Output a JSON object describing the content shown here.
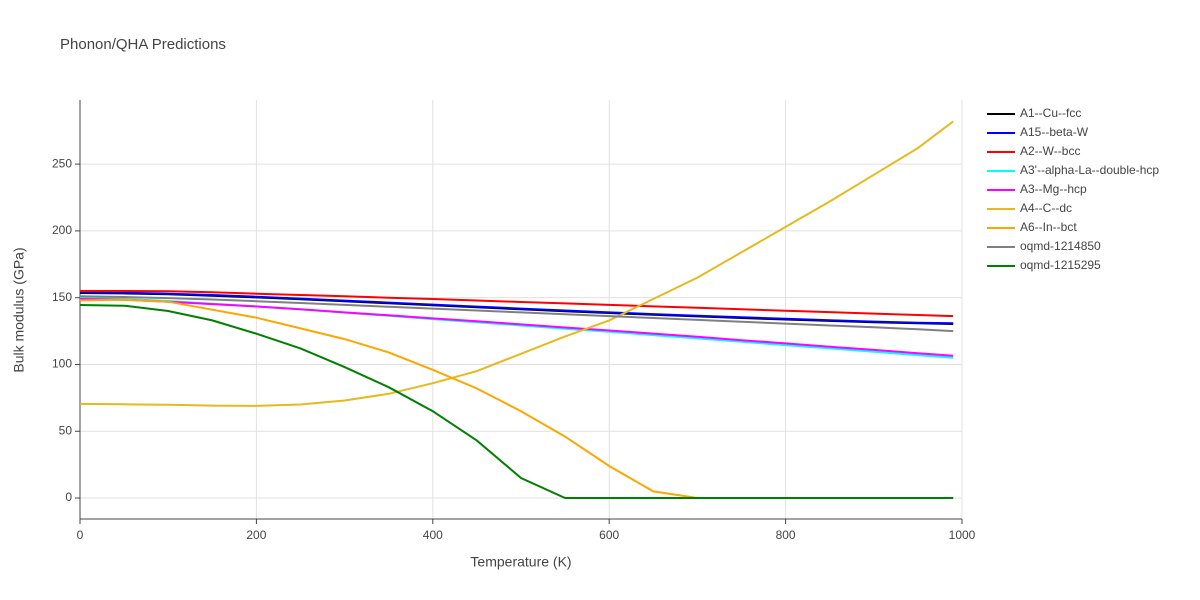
{
  "chart_data": {
    "type": "line",
    "title": "Phonon/QHA Predictions",
    "x_label": "Temperature (K)",
    "y_label": "Bulk modulus (GPa)",
    "x": [
      0,
      50,
      100,
      150,
      200,
      250,
      300,
      350,
      400,
      450,
      500,
      550,
      600,
      650,
      700,
      750,
      800,
      850,
      900,
      950,
      990
    ],
    "xlim": [
      0,
      1000
    ],
    "ylim": [
      -15.7,
      298
    ],
    "xticks": [
      0,
      200,
      400,
      600,
      800,
      1000
    ],
    "yticks": [
      0,
      50,
      100,
      150,
      200,
      250
    ],
    "grid": true,
    "legend": "right",
    "series": [
      {
        "name": "A1--Cu--fcc",
        "color": "#000000",
        "values": [
          153.5,
          153.2,
          152.5,
          151.5,
          150.2,
          148.8,
          147.3,
          145.8,
          144.3,
          142.8,
          141.3,
          139.9,
          138.5,
          137.2,
          136,
          134.8,
          133.7,
          132.6,
          131.6,
          130.8,
          130.3
        ]
      },
      {
        "name": "A15--beta-W",
        "color": "#0000ff",
        "values": [
          154,
          153.7,
          153,
          152,
          150.7,
          149.3,
          147.8,
          146.3,
          144.8,
          143.3,
          141.8,
          140.4,
          139,
          137.7,
          136.5,
          135.3,
          134.2,
          133.1,
          132.1,
          131.3,
          130.8
        ]
      },
      {
        "name": "A2--W--bcc",
        "color": "#ff0000",
        "values": [
          155,
          155,
          154.8,
          154,
          153,
          152,
          151,
          150,
          149,
          147.9,
          146.8,
          145.7,
          144.6,
          143.5,
          142.4,
          141.3,
          140.2,
          139.2,
          138.1,
          137,
          136.2
        ]
      },
      {
        "name": "A3'--alpha-La--double-hcp",
        "color": "#00ffff",
        "values": [
          150,
          149,
          147.5,
          145.5,
          143.5,
          141.2,
          138.8,
          136.4,
          134,
          131.6,
          129.2,
          126.8,
          124.5,
          122,
          119.5,
          117,
          114.5,
          112,
          109.5,
          107,
          105
        ]
      },
      {
        "name": "A3--Mg--hcp",
        "color": "#ff00ff",
        "values": [
          149,
          148.5,
          147,
          145.2,
          143.4,
          141.3,
          139,
          136.8,
          134.5,
          132.3,
          130,
          127.7,
          125.4,
          123.1,
          120.7,
          118.2,
          115.8,
          113.3,
          110.9,
          108.4,
          106.5
        ]
      },
      {
        "name": "A4--C--dc",
        "color": "#e6b91e",
        "values": [
          70.5,
          70.2,
          69.8,
          69.2,
          69,
          70,
          73,
          78,
          86,
          95,
          108,
          121,
          133,
          149,
          165,
          184,
          203,
          222,
          242,
          262,
          282
        ]
      },
      {
        "name": "A6--In--bct",
        "color": "#ffa500",
        "values": [
          148,
          148.5,
          147,
          141,
          135,
          127,
          119,
          109,
          96,
          82,
          65,
          46,
          24,
          5,
          0,
          0,
          0,
          0,
          0,
          0,
          0
        ]
      },
      {
        "name": "oqmd-1214850",
        "color": "#808080",
        "values": [
          151,
          150.5,
          149.7,
          148.6,
          147.4,
          146,
          144.6,
          143.2,
          141.8,
          140.4,
          139,
          137.6,
          136.2,
          134.8,
          133.4,
          132,
          130.6,
          129.2,
          127.8,
          126.3,
          125
        ]
      },
      {
        "name": "oqmd-1215295",
        "color": "#008000",
        "values": [
          144.5,
          144,
          140,
          133,
          123,
          112,
          98,
          83,
          65,
          43,
          15,
          0,
          0,
          0,
          0,
          0,
          0,
          0,
          0,
          0,
          0
        ]
      }
    ]
  }
}
